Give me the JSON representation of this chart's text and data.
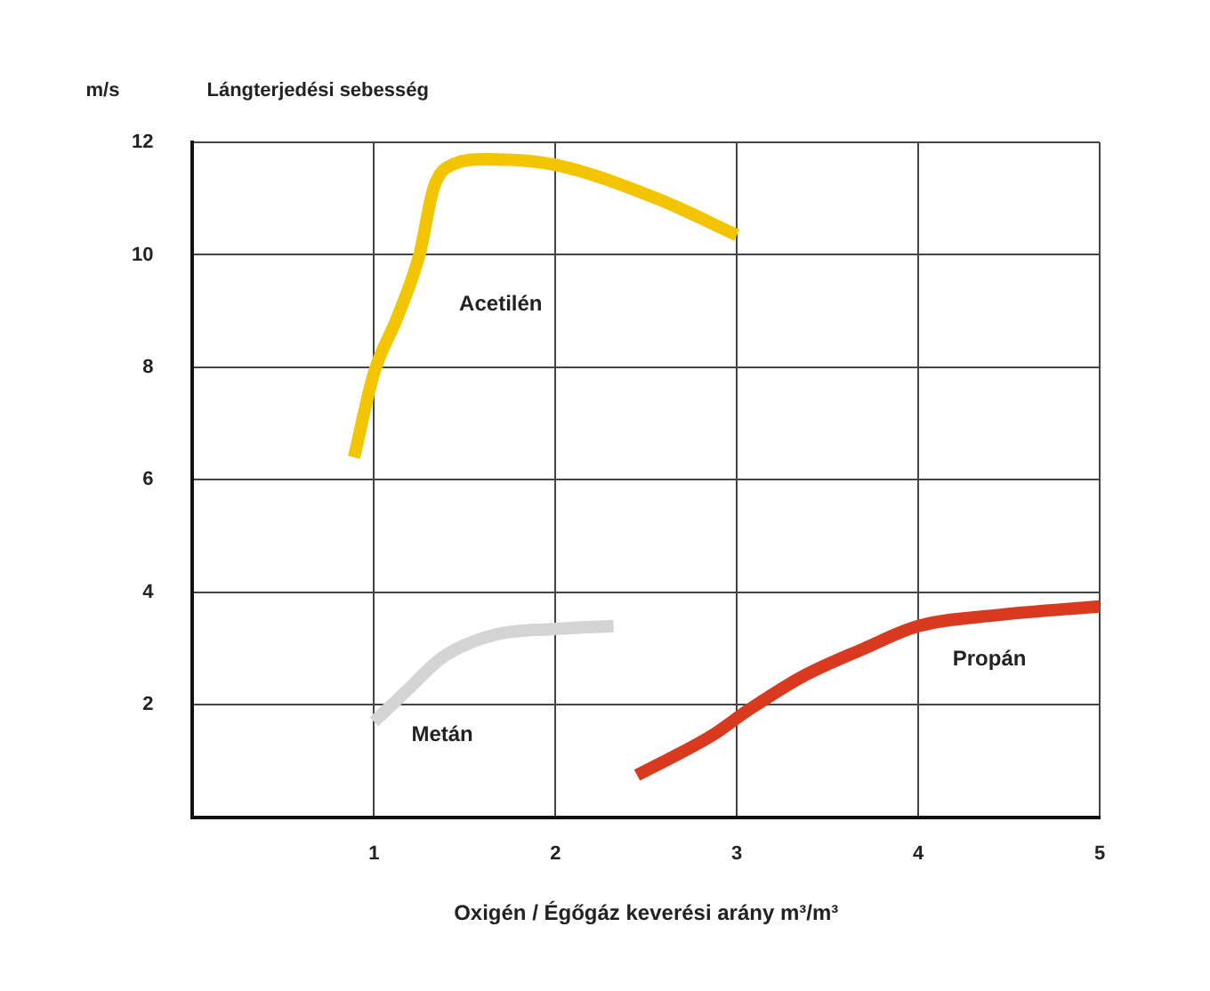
{
  "chart_data": {
    "type": "line",
    "title": "Lángterjedési sebesség",
    "ylabel": "m/s",
    "xlabel": "Oxigén / Égőgáz keverési arány m³/m³",
    "xlim": [
      0,
      5
    ],
    "xticks": [
      1,
      2,
      3,
      4,
      5
    ],
    "ylim": [
      0,
      12
    ],
    "yticks": [
      {
        "value": 0,
        "label": null
      },
      2,
      4,
      6,
      8,
      10,
      12
    ],
    "grid": true,
    "legend": false,
    "marker": "none",
    "line_style": "solid",
    "series": [
      {
        "name": "Acetilén",
        "color": "#f2c500",
        "x": [
          0.89,
          1.0,
          1.13,
          1.25,
          1.33,
          1.43,
          1.62,
          2.0,
          2.56,
          3.0
        ],
        "values": [
          6.4,
          7.9,
          8.9,
          10.0,
          11.2,
          11.6,
          11.7,
          11.6,
          11.0,
          10.35
        ]
      },
      {
        "name": "Metán",
        "color": "#d4d4d4",
        "x": [
          1.0,
          1.18,
          1.38,
          1.67,
          2.0,
          2.32
        ],
        "values": [
          1.7,
          2.25,
          2.85,
          3.25,
          3.35,
          3.4
        ]
      },
      {
        "name": "Propán",
        "color": "#d93a1f",
        "x": [
          2.45,
          2.86,
          3.06,
          3.36,
          3.7,
          4.0,
          4.45,
          5.0
        ],
        "values": [
          0.75,
          1.45,
          1.9,
          2.5,
          3.0,
          3.4,
          3.6,
          3.75
        ]
      }
    ]
  }
}
